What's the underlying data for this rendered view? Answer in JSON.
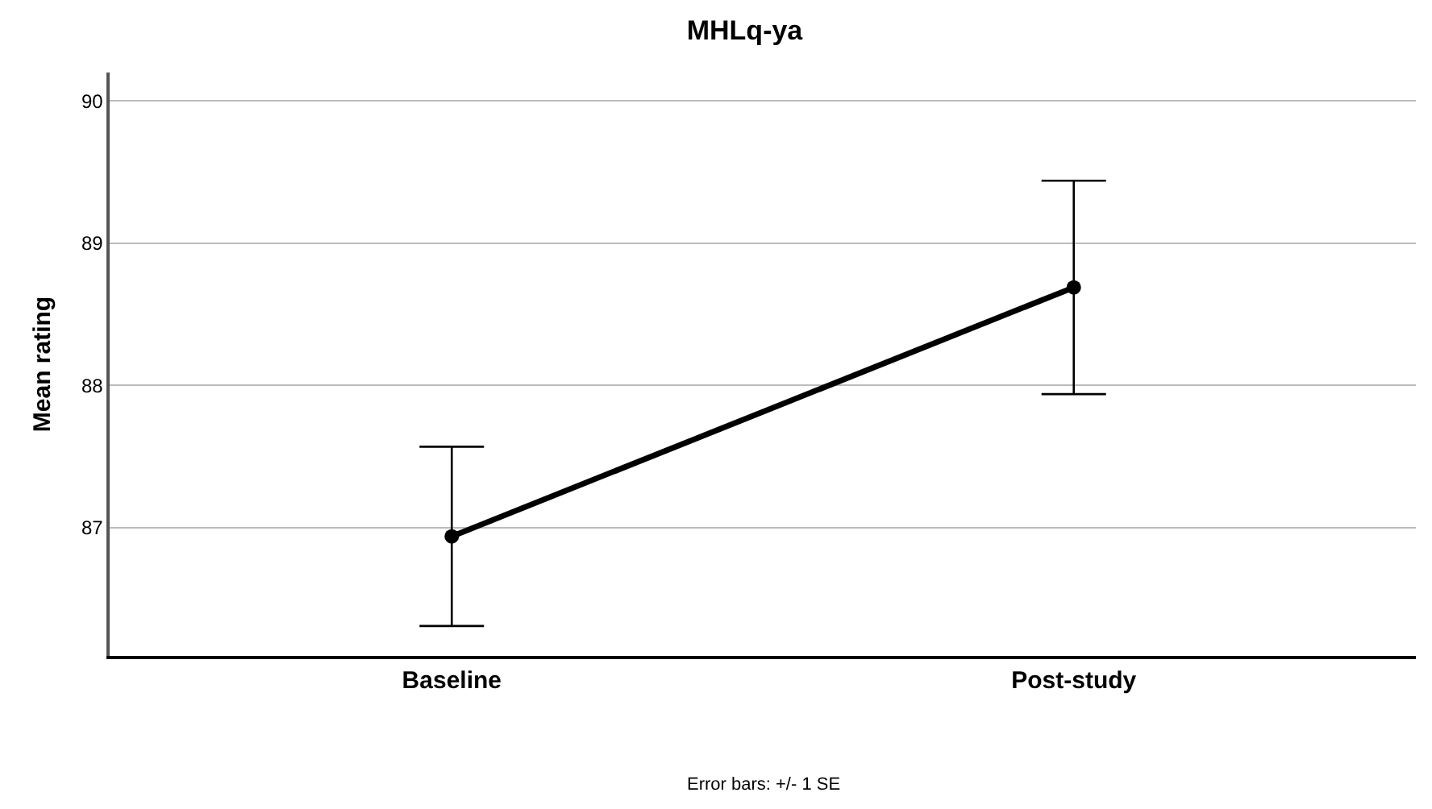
{
  "chart_data": {
    "type": "line",
    "title": "MHLq-ya",
    "ylabel": "Mean rating",
    "categories": [
      "Baseline",
      "Post-study"
    ],
    "series": [
      {
        "color": "#000000",
        "values": [
          86.94,
          88.69
        ],
        "errors": [
          0.63,
          0.75
        ]
      }
    ],
    "ylim": [
      86.1,
      90.2
    ],
    "yticks": [
      87,
      88,
      89,
      90
    ],
    "grid": "y",
    "marker": "circle",
    "line_style": "solid",
    "annotations": [
      "Error bars: +/- 1 SE"
    ]
  }
}
